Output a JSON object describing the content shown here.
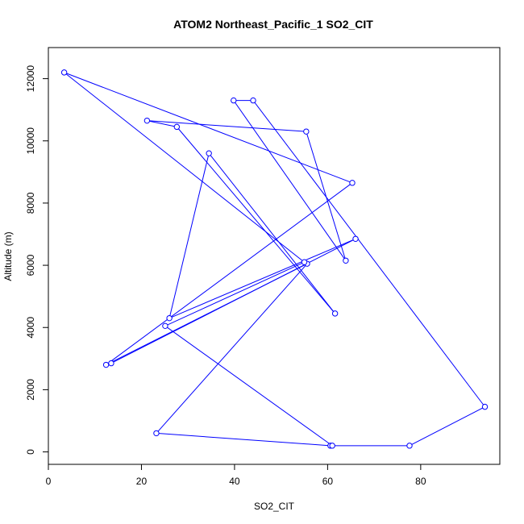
{
  "chart_data": {
    "type": "line",
    "title": "ATOM2 Northeast_Pacific_1 SO2_CIT",
    "xlabel": "SO2_CIT",
    "ylabel": "Altitude (m)",
    "xlim": [
      0,
      97
    ],
    "ylim": [
      -400,
      13000
    ],
    "x_ticks": [
      0,
      20,
      40,
      60,
      80
    ],
    "y_ticks": [
      0,
      2000,
      4000,
      6000,
      8000,
      10000,
      12000
    ],
    "grid": false,
    "series": [
      {
        "color": "#0000ff",
        "marker": "open-circle",
        "points": [
          {
            "x": 60.6,
            "y": 200
          },
          {
            "x": 23.2,
            "y": 600
          },
          {
            "x": 55.6,
            "y": 6050
          },
          {
            "x": 12.4,
            "y": 2800
          },
          {
            "x": 65.3,
            "y": 8650
          },
          {
            "x": 3.4,
            "y": 12200
          },
          {
            "x": 55.0,
            "y": 6100
          },
          {
            "x": 25.1,
            "y": 4050
          },
          {
            "x": 61.0,
            "y": 200
          },
          {
            "x": 77.6,
            "y": 200
          },
          {
            "x": 93.8,
            "y": 1450
          },
          {
            "x": 44.0,
            "y": 11300
          },
          {
            "x": 39.8,
            "y": 11300
          },
          {
            "x": 63.9,
            "y": 6150
          },
          {
            "x": 55.4,
            "y": 10300
          },
          {
            "x": 21.2,
            "y": 10650
          },
          {
            "x": 27.6,
            "y": 10450
          },
          {
            "x": 61.6,
            "y": 4450
          },
          {
            "x": 34.5,
            "y": 9600
          },
          {
            "x": 26.0,
            "y": 4300
          },
          {
            "x": 66.0,
            "y": 6850
          },
          {
            "x": 13.5,
            "y": 2850
          }
        ]
      }
    ]
  }
}
